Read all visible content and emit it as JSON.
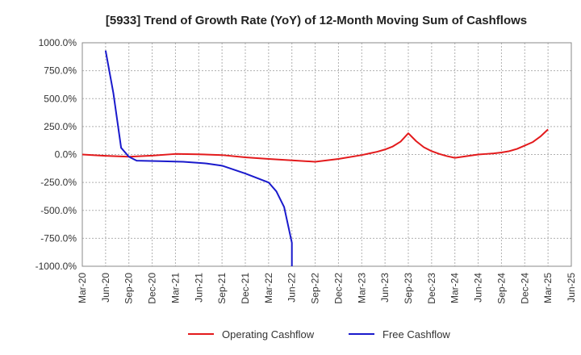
{
  "chart_data": {
    "type": "line",
    "title": "[5933]  Trend of Growth Rate (YoY) of 12-Month Moving Sum of Cashflows",
    "xlabel": "",
    "ylabel": "",
    "ylim": [
      -1000,
      1000
    ],
    "y_ticks": [
      1000,
      750,
      500,
      250,
      0,
      -250,
      -500,
      -750,
      -1000
    ],
    "y_tick_labels": [
      "1000.0%",
      "750.0%",
      "500.0%",
      "250.0%",
      "0.0%",
      "-250.0%",
      "-500.0%",
      "-750.0%",
      "-1000.0%"
    ],
    "x_tick_labels": [
      "Mar-20",
      "Jun-20",
      "Sep-20",
      "Dec-20",
      "Mar-21",
      "Jun-21",
      "Sep-21",
      "Dec-21",
      "Mar-22",
      "Jun-22",
      "Sep-22",
      "Dec-22",
      "Mar-23",
      "Jun-23",
      "Sep-23",
      "Dec-23",
      "Mar-24",
      "Jun-24",
      "Sep-24",
      "Dec-24",
      "Mar-25",
      "Jun-25"
    ],
    "grid": true,
    "legend_position": "bottom",
    "series": [
      {
        "name": "Operating Cashflow",
        "color": "#e31a1c",
        "points": [
          [
            "Mar-20",
            0
          ],
          [
            "Jun-20",
            -12
          ],
          [
            "Sep-20",
            -20
          ],
          [
            "Dec-20",
            -10
          ],
          [
            "Mar-21",
            5
          ],
          [
            "Jun-21",
            2
          ],
          [
            "Sep-21",
            -5
          ],
          [
            "Dec-21",
            -25
          ],
          [
            "Mar-22",
            -40
          ],
          [
            "Jun-22",
            -52
          ],
          [
            "Sep-22",
            -65
          ],
          [
            "Dec-22",
            -40
          ],
          [
            "Mar-23",
            -5
          ],
          [
            "Apr-23",
            10
          ],
          [
            "May-23",
            25
          ],
          [
            "Jun-23",
            45
          ],
          [
            "Jul-23",
            72
          ],
          [
            "Aug-23",
            115
          ],
          [
            "Sep-23",
            190
          ],
          [
            "Oct-23",
            120
          ],
          [
            "Nov-23",
            65
          ],
          [
            "Dec-23",
            30
          ],
          [
            "Jan-24",
            5
          ],
          [
            "Feb-24",
            -15
          ],
          [
            "Mar-24",
            -30
          ],
          [
            "Apr-24",
            -20
          ],
          [
            "May-24",
            -10
          ],
          [
            "Jun-24",
            0
          ],
          [
            "Jul-24",
            5
          ],
          [
            "Aug-24",
            10
          ],
          [
            "Sep-24",
            18
          ],
          [
            "Oct-24",
            30
          ],
          [
            "Nov-24",
            50
          ],
          [
            "Dec-24",
            80
          ],
          [
            "Jan-25",
            110
          ],
          [
            "Feb-25",
            160
          ],
          [
            "Mar-25",
            225
          ]
        ]
      },
      {
        "name": "Free Cashflow",
        "color": "#1a1acc",
        "points": [
          [
            "Jun-20",
            930
          ],
          [
            "Jul-20",
            550
          ],
          [
            "Aug-20",
            60
          ],
          [
            "Sep-20",
            -20
          ],
          [
            "Oct-20",
            -55
          ],
          [
            "Jan-21",
            -60
          ],
          [
            "Apr-21",
            -65
          ],
          [
            "Jul-21",
            -80
          ],
          [
            "Sep-21",
            -100
          ],
          [
            "Dec-21",
            -170
          ],
          [
            "Mar-22",
            -250
          ],
          [
            "Apr-22",
            -330
          ],
          [
            "May-22",
            -470
          ],
          [
            "Jun-22",
            -790
          ],
          [
            "Jun-22+",
            -1000
          ]
        ]
      }
    ]
  }
}
